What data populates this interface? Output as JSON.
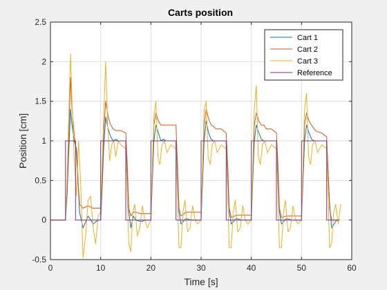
{
  "chart_data": {
    "type": "line",
    "title": "Carts position",
    "xlabel": "Time [s]",
    "ylabel": "Position [cm]",
    "xlim": [
      0,
      60
    ],
    "ylim": [
      -0.5,
      2.5
    ],
    "xticks": [
      0,
      10,
      20,
      30,
      40,
      50,
      60
    ],
    "yticks": [
      -0.5,
      0,
      0.5,
      1,
      1.5,
      2,
      2.5
    ],
    "xtick_labels": [
      "0",
      "10",
      "20",
      "30",
      "40",
      "50",
      "60"
    ],
    "ytick_labels": [
      "-0.5",
      "0",
      "0.5",
      "1",
      "1.5",
      "2",
      "2.5"
    ],
    "grid": true,
    "legend_position": "top-right",
    "series": [
      {
        "name": "Cart 1",
        "color": "#0072BD",
        "x": [
          0,
          3,
          3.3,
          3.6,
          4.0,
          4.3,
          4.7,
          5.2,
          5.8,
          6.5,
          7.5,
          8.5,
          9.5,
          10.0,
          10.3,
          10.6,
          11.0,
          11.5,
          12.0,
          12.5,
          13.0,
          13.5,
          14.0,
          15.0,
          15.3,
          15.6,
          16.0,
          16.5,
          17.0,
          18.0,
          19.0,
          20.0,
          20.3,
          20.6,
          21.0,
          21.5,
          22.0,
          22.5,
          23.0,
          24.0,
          25.0,
          25.3,
          25.6,
          26.0,
          27.0,
          28.0,
          29.0,
          30.0,
          30.3,
          30.6,
          31.0,
          31.5,
          32.0,
          32.5,
          33.0,
          34.0,
          35.0,
          35.3,
          35.6,
          36.0,
          37.0,
          38.0,
          39.0,
          40.0,
          40.3,
          40.6,
          41.0,
          41.5,
          42.0,
          42.5,
          43.0,
          44.0,
          45.0,
          45.3,
          45.6,
          46.0,
          47.0,
          48.0,
          49.0,
          50.0,
          50.3,
          50.6,
          51.0,
          51.5,
          52.0,
          52.5,
          53.0,
          54.0,
          55.0,
          55.3,
          55.6,
          56.0,
          56.5,
          57.0,
          57.5
        ],
        "y": [
          0,
          0,
          0.3,
          0.8,
          1.4,
          1.2,
          1.0,
          0.9,
          0.1,
          -0.1,
          0.05,
          -0.05,
          0,
          0,
          0.4,
          0.9,
          1.3,
          1.15,
          1.05,
          1.0,
          1.02,
          1.0,
          1.0,
          1.0,
          0.6,
          0.1,
          -0.1,
          0.05,
          0,
          -0.02,
          0,
          0,
          0.5,
          1.0,
          1.2,
          1.1,
          1.0,
          1.02,
          1.0,
          1.0,
          1.0,
          0.6,
          0.1,
          -0.05,
          0.02,
          0,
          0,
          0,
          0.5,
          1.0,
          1.25,
          1.1,
          1.02,
          1.0,
          1.0,
          1.0,
          1.0,
          0.6,
          0.1,
          -0.05,
          0.02,
          0,
          0,
          0,
          0.5,
          1.0,
          1.2,
          1.1,
          1.02,
          1.0,
          1.0,
          1.0,
          1.0,
          0.6,
          0.1,
          -0.05,
          0.02,
          0,
          0,
          0,
          0.5,
          1.0,
          1.2,
          1.1,
          1.02,
          1.0,
          1.0,
          1.0,
          1.0,
          0.6,
          0.2,
          -0.1,
          -0.05,
          0,
          0
        ]
      },
      {
        "name": "Cart 2",
        "color": "#D95319",
        "x": [
          0,
          3,
          3.3,
          3.6,
          4.0,
          4.3,
          4.7,
          5.2,
          5.8,
          6.5,
          7.5,
          8.5,
          9.5,
          10.0,
          10.3,
          10.6,
          11.0,
          11.5,
          12.0,
          12.5,
          13.0,
          13.5,
          14.0,
          15.0,
          15.3,
          15.6,
          16.0,
          16.5,
          17.0,
          18.0,
          19.0,
          20.0,
          20.3,
          20.6,
          21.0,
          21.5,
          22.0,
          22.5,
          23.0,
          24.0,
          25.0,
          25.3,
          25.6,
          26.0,
          27.0,
          28.0,
          29.0,
          30.0,
          30.3,
          30.6,
          31.0,
          31.5,
          32.0,
          32.5,
          33.0,
          34.0,
          35.0,
          35.3,
          35.6,
          36.0,
          37.0,
          38.0,
          39.0,
          40.0,
          40.3,
          40.6,
          41.0,
          41.5,
          42.0,
          42.5,
          43.0,
          44.0,
          45.0,
          45.3,
          45.6,
          46.0,
          47.0,
          48.0,
          49.0,
          50.0,
          50.3,
          50.6,
          51.0,
          51.5,
          52.0,
          52.5,
          53.0,
          54.0,
          55.0,
          55.3,
          55.6,
          56.0,
          56.5,
          57.0,
          57.5
        ],
        "y": [
          0,
          0,
          0.4,
          1.0,
          1.8,
          1.4,
          1.1,
          0.8,
          0.2,
          0.15,
          0.18,
          0.15,
          0.15,
          0.15,
          0.5,
          1.1,
          1.5,
          1.3,
          1.2,
          1.15,
          1.13,
          1.13,
          1.13,
          1.1,
          0.7,
          0.15,
          0.05,
          0.1,
          0.1,
          0.08,
          0.08,
          0.08,
          0.6,
          1.2,
          1.35,
          1.25,
          1.2,
          1.2,
          1.2,
          1.2,
          1.2,
          0.7,
          0.15,
          0.05,
          0.1,
          0.1,
          0.1,
          0.1,
          0.6,
          1.2,
          1.4,
          1.28,
          1.2,
          1.18,
          1.15,
          1.15,
          1.1,
          0.7,
          0.15,
          0.03,
          0.06,
          0.06,
          0.06,
          0.06,
          0.6,
          1.2,
          1.35,
          1.25,
          1.2,
          1.2,
          1.15,
          1.15,
          1.1,
          0.7,
          0.15,
          0.03,
          0.05,
          0.05,
          0.05,
          0.05,
          0.6,
          1.2,
          1.35,
          1.25,
          1.2,
          1.15,
          1.12,
          1.1,
          1.05,
          0.6,
          0.15,
          0.0,
          0.0,
          0.0,
          0.0
        ]
      },
      {
        "name": "Cart 3",
        "color": "#EDB120",
        "x": [
          0,
          3,
          3.3,
          3.6,
          4.0,
          4.3,
          4.7,
          5.2,
          5.6,
          6.0,
          6.5,
          7.0,
          7.5,
          8.0,
          8.5,
          9.0,
          9.5,
          10.0,
          10.3,
          10.6,
          11.0,
          11.4,
          11.8,
          12.2,
          12.6,
          13.0,
          13.5,
          14.0,
          15.0,
          15.3,
          15.6,
          16.0,
          16.4,
          16.8,
          17.3,
          17.8,
          18.3,
          18.8,
          19.3,
          20.0,
          20.3,
          20.6,
          21.0,
          21.4,
          21.8,
          22.2,
          22.7,
          23.2,
          24.0,
          25.0,
          25.3,
          25.6,
          26.0,
          26.4,
          26.8,
          27.3,
          27.8,
          28.3,
          28.8,
          29.3,
          30.0,
          30.3,
          30.6,
          31.0,
          31.4,
          31.8,
          32.2,
          32.7,
          33.2,
          34.0,
          35.0,
          35.3,
          35.6,
          36.0,
          36.4,
          36.8,
          37.3,
          37.8,
          38.3,
          38.8,
          39.3,
          40.0,
          40.3,
          40.6,
          41.0,
          41.4,
          41.8,
          42.2,
          42.7,
          43.2,
          44.0,
          45.0,
          45.3,
          45.6,
          46.0,
          46.4,
          46.8,
          47.3,
          47.8,
          48.3,
          48.8,
          49.3,
          50.0,
          50.3,
          50.6,
          51.0,
          51.4,
          51.8,
          52.2,
          52.7,
          53.2,
          54.0,
          55.0,
          55.3,
          55.6,
          56.0,
          56.4,
          56.8,
          57.3,
          57.8
        ],
        "y": [
          0,
          0,
          0.5,
          1.2,
          2.1,
          1.5,
          0.8,
          0.3,
          1.0,
          0.5,
          -0.48,
          -0.2,
          0.25,
          0.3,
          -0.1,
          -0.3,
          0.05,
          0.1,
          0.7,
          1.3,
          2.0,
          1.2,
          0.75,
          0.95,
          1.0,
          0.8,
          1.0,
          0.95,
          0.9,
          0.3,
          -0.3,
          -0.4,
          0.1,
          0.2,
          -0.2,
          -0.1,
          0.18,
          0.0,
          -0.1,
          0.0,
          0.7,
          1.3,
          1.5,
          0.8,
          0.7,
          0.95,
          1.0,
          0.85,
          0.95,
          0.9,
          0.3,
          -0.35,
          -0.35,
          0.1,
          0.25,
          -0.15,
          -0.1,
          0.18,
          0.0,
          -0.05,
          0.0,
          0.7,
          1.4,
          1.5,
          0.8,
          0.7,
          0.95,
          1.0,
          0.85,
          0.95,
          0.9,
          0.3,
          -0.35,
          -0.35,
          0.1,
          0.25,
          -0.15,
          -0.1,
          0.18,
          0.0,
          -0.05,
          0.0,
          0.7,
          1.4,
          1.7,
          0.8,
          0.7,
          0.95,
          1.0,
          0.85,
          0.95,
          0.9,
          0.3,
          -0.35,
          -0.35,
          0.1,
          0.25,
          -0.15,
          -0.1,
          0.18,
          0.0,
          -0.05,
          0.0,
          0.7,
          1.4,
          1.6,
          0.8,
          0.7,
          0.95,
          1.0,
          0.85,
          0.95,
          0.9,
          0.3,
          -0.35,
          -0.3,
          0.1,
          0.2,
          -0.05,
          0.2
        ]
      },
      {
        "name": "Reference",
        "color": "#7E2F8E",
        "x": [
          0,
          3,
          3,
          5,
          5,
          10,
          10,
          15,
          15,
          20,
          20,
          25,
          25,
          30,
          30,
          35,
          35,
          40,
          40,
          45,
          45,
          50,
          50,
          55,
          55,
          57.5
        ],
        "y": [
          0,
          0,
          1,
          1,
          0,
          0,
          1,
          1,
          0,
          0,
          1,
          1,
          0,
          0,
          1,
          1,
          0,
          0,
          1,
          1,
          0,
          0,
          1,
          1,
          0,
          0
        ]
      }
    ]
  }
}
